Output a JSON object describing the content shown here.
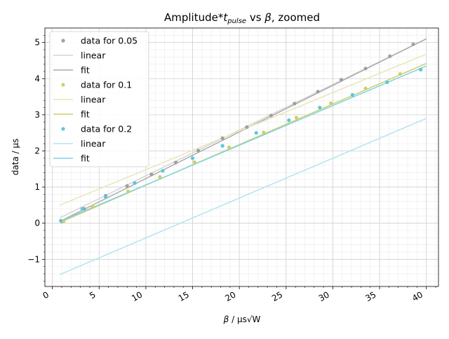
{
  "chart_data": {
    "type": "scatter",
    "title_main": "Amplitude*",
    "title_sym": "t",
    "title_sub": "pulse",
    "title_rest": " vs ",
    "title_beta": "β",
    "title_tail": ", zoomed",
    "xlabel_sym": "β",
    "xlabel_unit": " / µs√W",
    "ylabel": "data / µs",
    "xlim": [
      -0.8,
      41.3
    ],
    "ylim": [
      -1.75,
      5.4
    ],
    "xticks": [
      0,
      5,
      10,
      15,
      20,
      25,
      30,
      35,
      40
    ],
    "xtick_labels": [
      "0",
      "5",
      "10",
      "15",
      "20",
      "25",
      "30",
      "35",
      "40"
    ],
    "yticks": [
      -1,
      0,
      1,
      2,
      3,
      4,
      5
    ],
    "ytick_labels": [
      "−1",
      "0",
      "1",
      "2",
      "3",
      "4",
      "5"
    ],
    "grid": true,
    "minor_grid": true,
    "legend_position": "top-left",
    "series": [
      {
        "name": "data for 0.05",
        "kind": "points",
        "color": "#a0a0a0",
        "x": [
          1.0,
          3.4,
          5.7,
          8.0,
          10.6,
          13.2,
          15.6,
          18.2,
          20.8,
          23.4,
          25.9,
          28.4,
          30.9,
          33.5,
          36.1,
          38.6
        ],
        "y": [
          0.05,
          0.4,
          0.76,
          1.03,
          1.35,
          1.68,
          2.01,
          2.35,
          2.66,
          2.98,
          3.31,
          3.64,
          3.97,
          4.28,
          4.62,
          4.95
        ]
      },
      {
        "name": "linear",
        "kind": "line",
        "color": "#d4d4d4",
        "x": [
          0.8,
          40.0
        ],
        "y": [
          0.15,
          5.1
        ]
      },
      {
        "name": "fit",
        "kind": "line",
        "color": "#ababab",
        "x": [
          0.8,
          40.0
        ],
        "y": [
          0.05,
          5.1
        ]
      },
      {
        "name": "data for 0.1",
        "kind": "points",
        "color": "#cfcf6a",
        "x": [
          1.2,
          4.3,
          8.1,
          11.5,
          15.2,
          18.9,
          22.6,
          26.1,
          29.8,
          33.5,
          37.2
        ],
        "y": [
          0.05,
          0.46,
          0.88,
          1.28,
          1.69,
          2.1,
          2.51,
          2.92,
          3.32,
          3.73,
          4.13
        ]
      },
      {
        "name": "linear",
        "kind": "line",
        "color": "#e7e6b8",
        "x": [
          0.8,
          40.0
        ],
        "y": [
          0.5,
          4.68
        ]
      },
      {
        "name": "fit",
        "kind": "line",
        "color": "#cfcf6a",
        "x": [
          0.8,
          40.0
        ],
        "y": [
          0.02,
          4.42
        ]
      },
      {
        "name": "data for 0.2",
        "kind": "points",
        "color": "#5bc8da",
        "x": [
          0.9,
          3.2,
          5.7,
          8.8,
          11.8,
          15.0,
          18.2,
          21.8,
          25.3,
          28.6,
          32.1,
          35.8,
          39.4
        ],
        "y": [
          0.07,
          0.4,
          0.73,
          1.11,
          1.45,
          1.8,
          2.14,
          2.5,
          2.85,
          3.2,
          3.55,
          3.9,
          4.25
        ]
      },
      {
        "name": "linear",
        "kind": "line",
        "color": "#b3e4ee",
        "x": [
          0.8,
          40.0
        ],
        "y": [
          -1.42,
          2.9
        ]
      },
      {
        "name": "fit",
        "kind": "line",
        "color": "#7fd3e3",
        "x": [
          0.8,
          40.0
        ],
        "y": [
          0.05,
          4.35
        ]
      }
    ]
  }
}
